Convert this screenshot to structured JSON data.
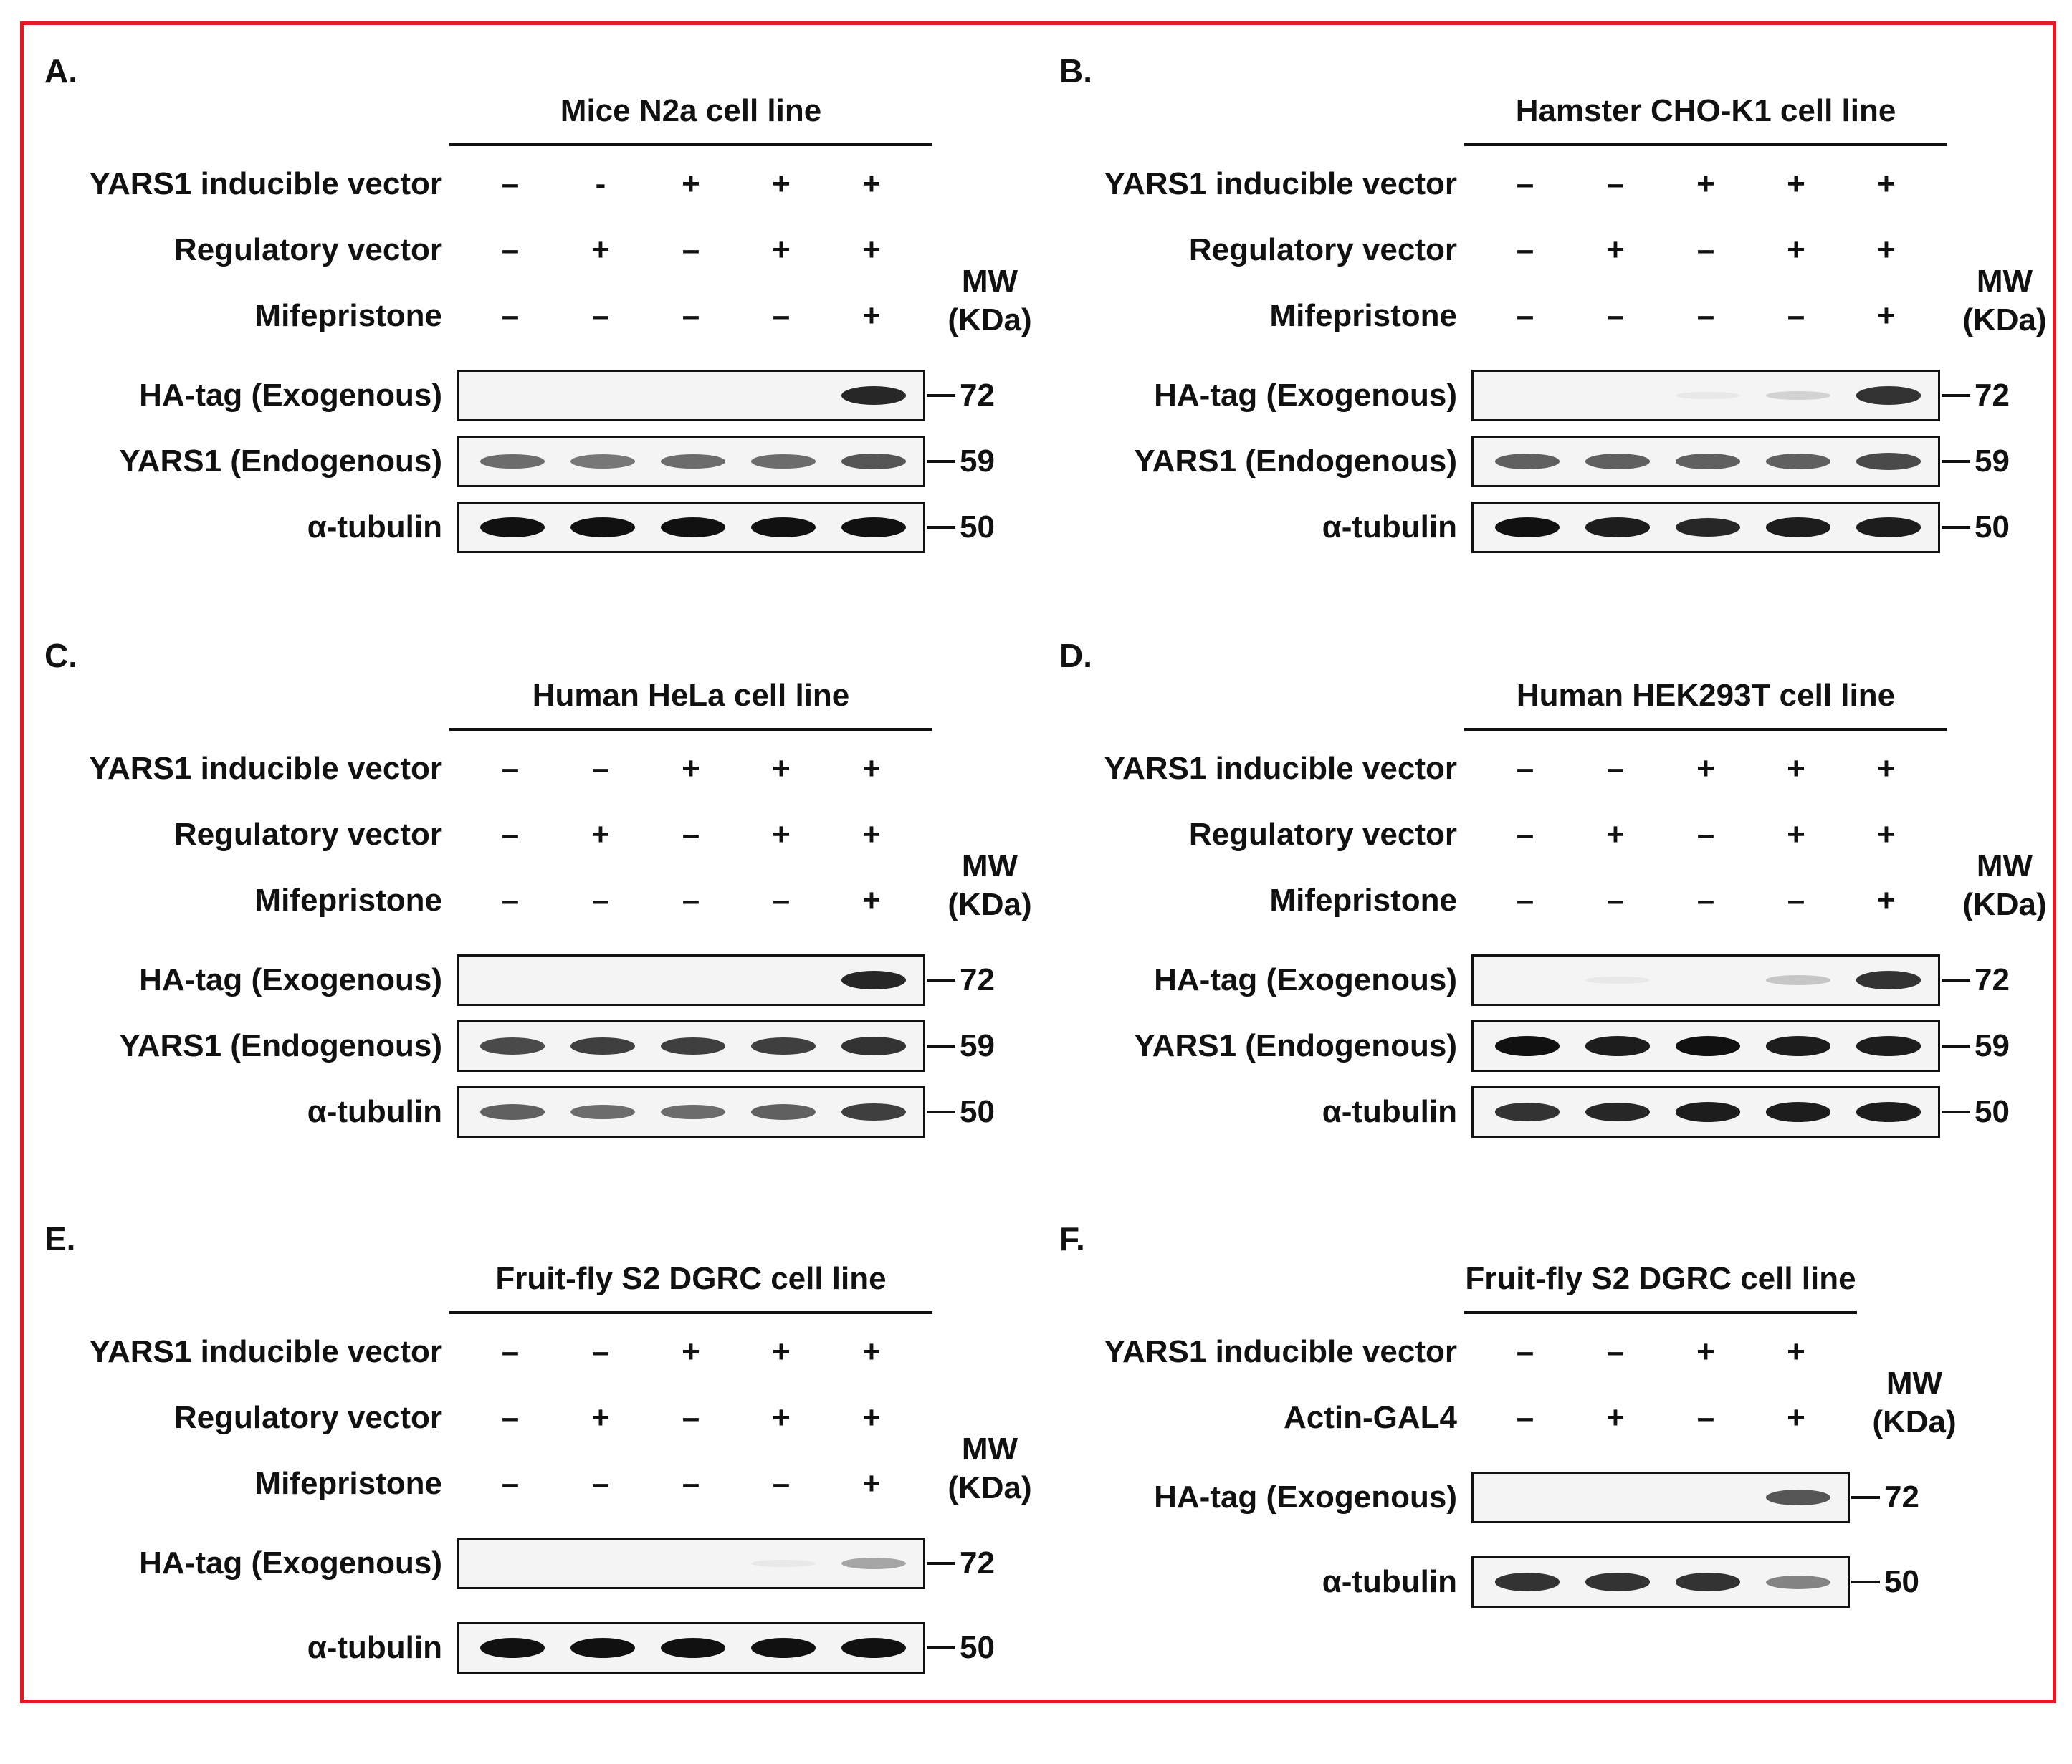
{
  "panels": [
    {
      "label": "A.",
      "title": "Mice N2a cell line",
      "conditions": [
        {
          "name": "YARS1 inducible vector",
          "values": [
            "–",
            "-",
            "+",
            "+",
            "+"
          ]
        },
        {
          "name": "Regulatory vector",
          "values": [
            "–",
            "+",
            "–",
            "+",
            "+"
          ]
        },
        {
          "name": "Mifepristone",
          "values": [
            "–",
            "–",
            "–",
            "–",
            "+"
          ]
        }
      ],
      "blots": [
        {
          "name": "HA-tag (Exogenous)",
          "mw": "72",
          "intensity": [
            0,
            0,
            0,
            0,
            0.9
          ]
        },
        {
          "name": "YARS1 (Endogenous)",
          "mw": "59",
          "intensity": [
            0.6,
            0.55,
            0.6,
            0.6,
            0.7
          ]
        },
        {
          "name": "α-tubulin",
          "mw": "50",
          "intensity": [
            1,
            1,
            1,
            1,
            1
          ]
        }
      ]
    },
    {
      "label": "B.",
      "title": "Hamster CHO-K1 cell line",
      "conditions": [
        {
          "name": "YARS1 inducible vector",
          "values": [
            "–",
            "–",
            "+",
            "+",
            "+"
          ]
        },
        {
          "name": "Regulatory vector",
          "values": [
            "–",
            "+",
            "–",
            "+",
            "+"
          ]
        },
        {
          "name": "Mifepristone",
          "values": [
            "–",
            "–",
            "–",
            "–",
            "+"
          ]
        }
      ],
      "blots": [
        {
          "name": "HA-tag (Exogenous)",
          "mw": "72",
          "intensity": [
            0,
            0,
            0.05,
            0.15,
            0.85
          ]
        },
        {
          "name": "YARS1 (Endogenous)",
          "mw": "59",
          "intensity": [
            0.65,
            0.65,
            0.65,
            0.65,
            0.75
          ]
        },
        {
          "name": "α-tubulin",
          "mw": "50",
          "intensity": [
            1,
            0.95,
            0.9,
            0.95,
            0.95
          ]
        }
      ]
    },
    {
      "label": "C.",
      "title": "Human HeLa cell line",
      "conditions": [
        {
          "name": "YARS1 inducible vector",
          "values": [
            "–",
            "–",
            "+",
            "+",
            "+"
          ]
        },
        {
          "name": "Regulatory vector",
          "values": [
            "–",
            "+",
            "–",
            "+",
            "+"
          ]
        },
        {
          "name": "Mifepristone",
          "values": [
            "–",
            "–",
            "–",
            "–",
            "+"
          ]
        }
      ],
      "blots": [
        {
          "name": "HA-tag (Exogenous)",
          "mw": "72",
          "intensity": [
            0,
            0,
            0,
            0,
            0.9
          ]
        },
        {
          "name": "YARS1 (Endogenous)",
          "mw": "59",
          "intensity": [
            0.75,
            0.8,
            0.8,
            0.8,
            0.85
          ]
        },
        {
          "name": "α-tubulin",
          "mw": "50",
          "intensity": [
            0.65,
            0.6,
            0.6,
            0.65,
            0.8
          ]
        }
      ]
    },
    {
      "label": "D.",
      "title": "Human HEK293T cell line",
      "conditions": [
        {
          "name": "YARS1 inducible vector",
          "values": [
            "–",
            "–",
            "+",
            "+",
            "+"
          ]
        },
        {
          "name": "Regulatory vector",
          "values": [
            "–",
            "+",
            "–",
            "+",
            "+"
          ]
        },
        {
          "name": "Mifepristone",
          "values": [
            "–",
            "–",
            "–",
            "–",
            "+"
          ]
        }
      ],
      "blots": [
        {
          "name": "HA-tag (Exogenous)",
          "mw": "72",
          "intensity": [
            0,
            0.05,
            0,
            0.2,
            0.85
          ]
        },
        {
          "name": "YARS1 (Endogenous)",
          "mw": "59",
          "intensity": [
            1,
            0.95,
            1,
            0.95,
            0.95
          ]
        },
        {
          "name": "α-tubulin",
          "mw": "50",
          "intensity": [
            0.85,
            0.9,
            0.95,
            0.95,
            0.95
          ]
        }
      ]
    },
    {
      "label": "E.",
      "title": "Fruit-fly S2 DGRC cell line",
      "conditions": [
        {
          "name": "YARS1 inducible vector",
          "values": [
            "–",
            "–",
            "+",
            "+",
            "+"
          ]
        },
        {
          "name": "Regulatory vector",
          "values": [
            "–",
            "+",
            "–",
            "+",
            "+"
          ]
        },
        {
          "name": "Mifepristone",
          "values": [
            "–",
            "–",
            "–",
            "–",
            "+"
          ]
        }
      ],
      "blots": [
        {
          "name": "HA-tag (Exogenous)",
          "mw": "72",
          "intensity": [
            0,
            0,
            0,
            0.05,
            0.35
          ]
        },
        {
          "name": "α-tubulin",
          "mw": "50",
          "intensity": [
            1,
            1,
            1,
            1,
            1
          ]
        }
      ]
    },
    {
      "label": "F.",
      "title": "Fruit-fly S2 DGRC cell line",
      "conditions": [
        {
          "name": "YARS1 inducible vector",
          "values": [
            "–",
            "–",
            "+",
            "+"
          ]
        },
        {
          "name": "Actin-GAL4",
          "values": [
            "–",
            "+",
            "–",
            "+"
          ]
        }
      ],
      "blots": [
        {
          "name": "HA-tag (Exogenous)",
          "mw": "72",
          "intensity": [
            0,
            0,
            0,
            0.7
          ]
        },
        {
          "name": "α-tubulin",
          "mw": "50",
          "intensity": [
            0.85,
            0.85,
            0.85,
            0.5
          ]
        }
      ]
    }
  ],
  "mw_header_line1": "MW",
  "mw_header_line2": "(KDa)",
  "colors": {
    "frame": "#e01b24",
    "band": "#111111",
    "blot_bg": "#f4f4f4"
  }
}
